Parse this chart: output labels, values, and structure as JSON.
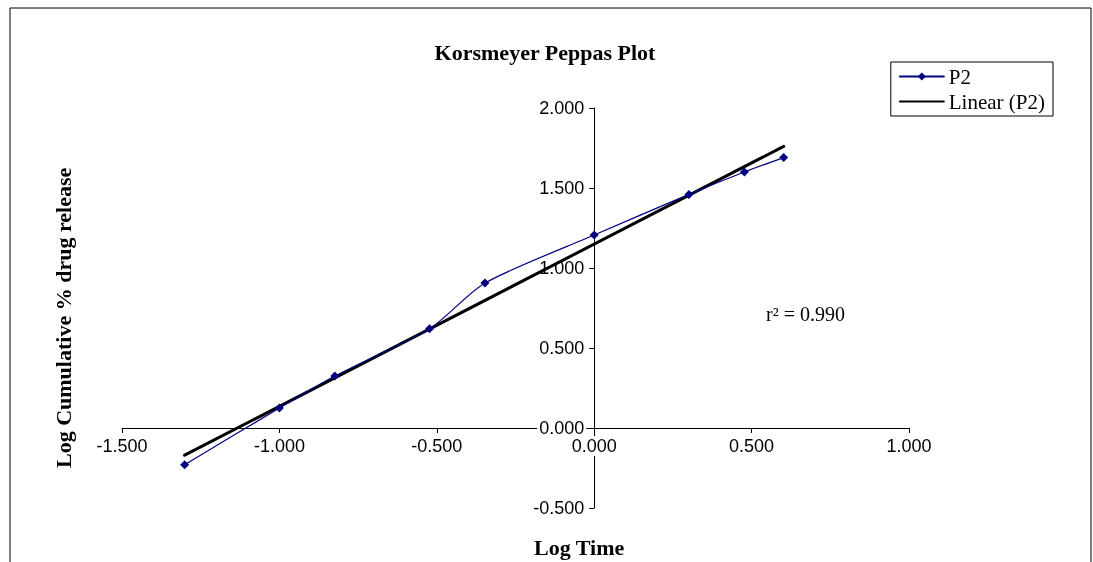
{
  "chart_data": {
    "type": "line",
    "title": "Korsmeyer Peppas Plot",
    "xlabel": "Log Time",
    "ylabel": "Log Cumulative % drug release",
    "series": [
      {
        "name": "P2",
        "color": "#000080",
        "x": [
          -1.301,
          -1.0,
          -0.824,
          -0.523,
          -0.347,
          0.0,
          0.301,
          0.477,
          0.602
        ],
        "values": [
          -0.23,
          0.125,
          0.325,
          0.62,
          0.906,
          1.206,
          1.46,
          1.6,
          1.69
        ],
        "marker": "diamond"
      },
      {
        "name": "Linear (P2)",
        "color": "#000000",
        "x": [
          -1.301,
          0.602
        ],
        "values": [
          -0.17,
          1.76
        ],
        "marker": "none"
      }
    ],
    "annotations": [
      "r² = 0.990"
    ],
    "xlim": [
      -1.5,
      1.0
    ],
    "xticks": [
      {
        "value": -1.5,
        "label": "-1.500"
      },
      {
        "value": -1.0,
        "label": "-1.000"
      },
      {
        "value": -0.5,
        "label": "-0.500"
      },
      {
        "value": 0,
        "label": "0.000"
      },
      {
        "value": 0.5,
        "label": "0.500"
      },
      {
        "value": 1.0,
        "label": "1.000"
      }
    ],
    "ylim": [
      -0.5,
      2.0
    ],
    "yticks": [
      {
        "value": -0.5,
        "label": "-0.500"
      },
      {
        "value": 0,
        "label": "0.000"
      },
      {
        "value": 0.5,
        "label": "0.500"
      },
      {
        "value": 1.0,
        "label": "1.000"
      },
      {
        "value": 1.5,
        "label": "1.500"
      },
      {
        "value": 2.0,
        "label": "2.000"
      }
    ],
    "grid": false,
    "legend": "top right"
  }
}
